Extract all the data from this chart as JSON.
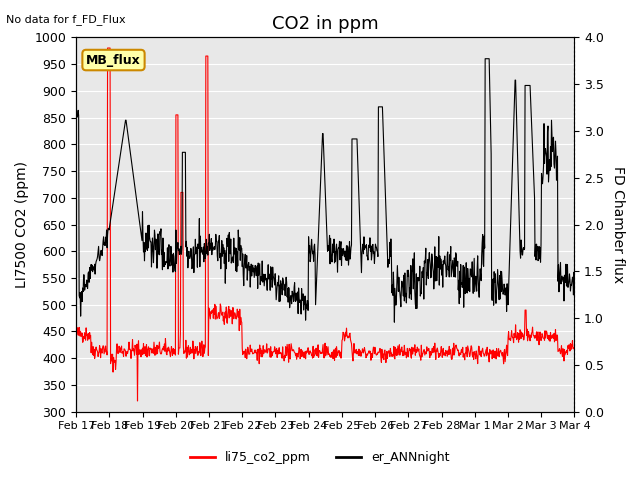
{
  "title": "CO2 in ppm",
  "top_left_text": "No data for f_FD_Flux",
  "ylabel_left": "LI7500 CO2 (ppm)",
  "ylabel_right": "FD Chamber flux",
  "ylim_left": [
    300,
    1000
  ],
  "ylim_right": [
    0.0,
    4.0
  ],
  "yticks_left": [
    300,
    350,
    400,
    450,
    500,
    550,
    600,
    650,
    700,
    750,
    800,
    850,
    900,
    950,
    1000
  ],
  "yticks_right": [
    0.0,
    0.5,
    1.0,
    1.5,
    2.0,
    2.5,
    3.0,
    3.5,
    4.0
  ],
  "xtick_labels": [
    "Feb 17",
    "Feb 18",
    "Feb 19",
    "Feb 20",
    "Feb 21",
    "Feb 22",
    "Feb 23",
    "Feb 24",
    "Feb 25",
    "Feb 26",
    "Feb 27",
    "Feb 28",
    "Mar 1",
    "Mar 2",
    "Mar 3",
    "Mar 4"
  ],
  "legend_label_red": "li75_co2_ppm",
  "legend_label_black": "er_ANNnight",
  "mb_flux_label": "MB_flux",
  "bg_color": "#e8e8e8",
  "line_color_red": "#ff0000",
  "line_color_black": "#000000",
  "title_fontsize": 13,
  "axis_fontsize": 10,
  "tick_fontsize": 9
}
